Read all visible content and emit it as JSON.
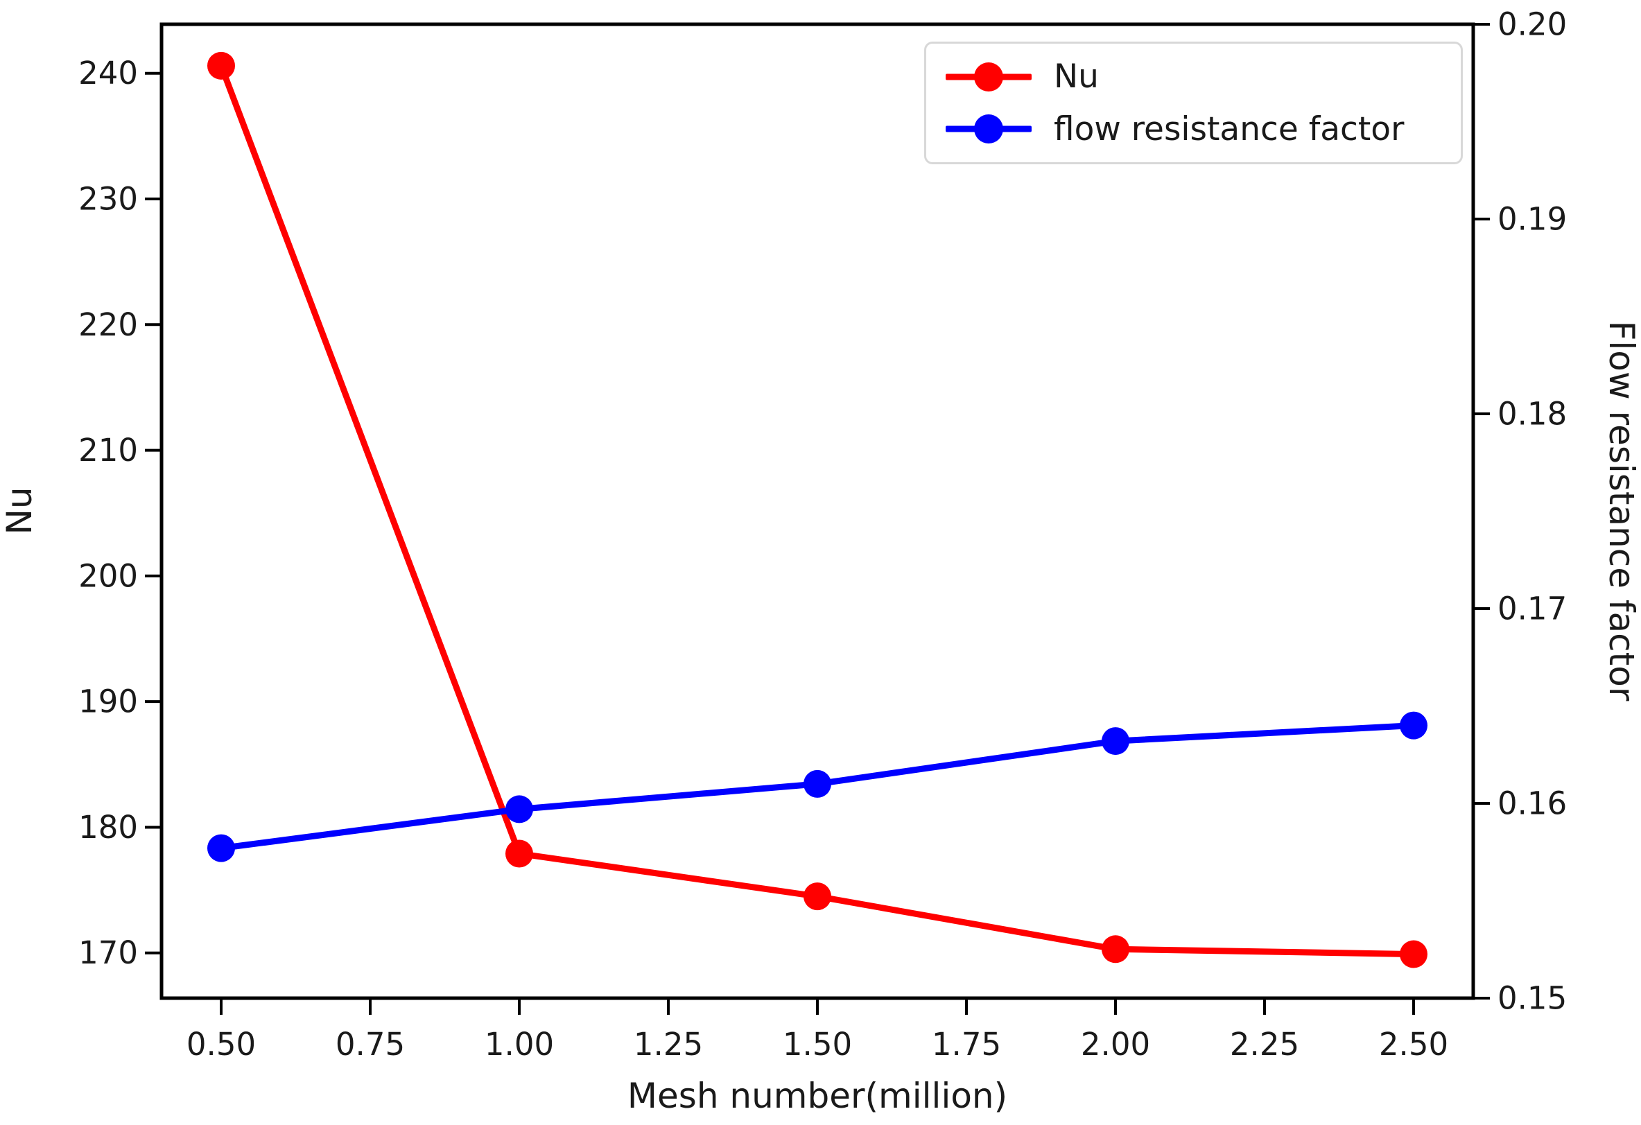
{
  "figure": {
    "background_color": "#ffffff",
    "spine_color": "#000000",
    "xlabel": "Mesh number(million)",
    "ylabel_left": "Nu",
    "ylabel_right": "Flow resistance factor"
  },
  "legend": {
    "position": "upper right",
    "items": [
      {
        "label": "Nu",
        "color": "#ff0000",
        "marker": "circle-marker-icon"
      },
      {
        "label": "flow resistance factor",
        "color": "#0000ff",
        "marker": "circle-marker-icon"
      }
    ]
  },
  "chart_data": {
    "type": "line",
    "title": "",
    "xlabel": "Mesh number(million)",
    "ylabel_left": "Nu",
    "ylabel_right": "Flow resistance factor",
    "x": [
      0.5,
      1.0,
      1.5,
      2.0,
      2.5
    ],
    "series": [
      {
        "name": "Nu",
        "axis": "left",
        "color": "#ff0000",
        "marker": "o",
        "values": [
          240.6,
          177.9,
          174.5,
          170.3,
          169.9
        ]
      },
      {
        "name": "flow resistance factor",
        "axis": "right",
        "color": "#0000ff",
        "marker": "o",
        "values": [
          0.1577,
          0.1597,
          0.161,
          0.1632,
          0.164
        ]
      }
    ],
    "xlim": [
      0.4,
      2.6
    ],
    "ylim_left": [
      166.4,
      243.9
    ],
    "ylim_right": [
      0.15,
      0.2
    ],
    "x_ticks": [
      0.5,
      0.75,
      1.0,
      1.25,
      1.5,
      1.75,
      2.0,
      2.25,
      2.5
    ],
    "x_tick_labels": [
      "0.50",
      "0.75",
      "1.00",
      "1.25",
      "1.50",
      "1.75",
      "2.00",
      "2.25",
      "2.50"
    ],
    "y_ticks_left": [
      170,
      180,
      190,
      200,
      210,
      220,
      230,
      240
    ],
    "y_tick_labels_left": [
      "170",
      "180",
      "190",
      "200",
      "210",
      "220",
      "230",
      "240"
    ],
    "y_ticks_right": [
      0.15,
      0.16,
      0.17,
      0.18,
      0.19,
      0.2
    ],
    "y_tick_labels_right": [
      "0.15",
      "0.16",
      "0.17",
      "0.18",
      "0.19",
      "0.20"
    ],
    "grid": false,
    "legend_position": "upper right"
  }
}
